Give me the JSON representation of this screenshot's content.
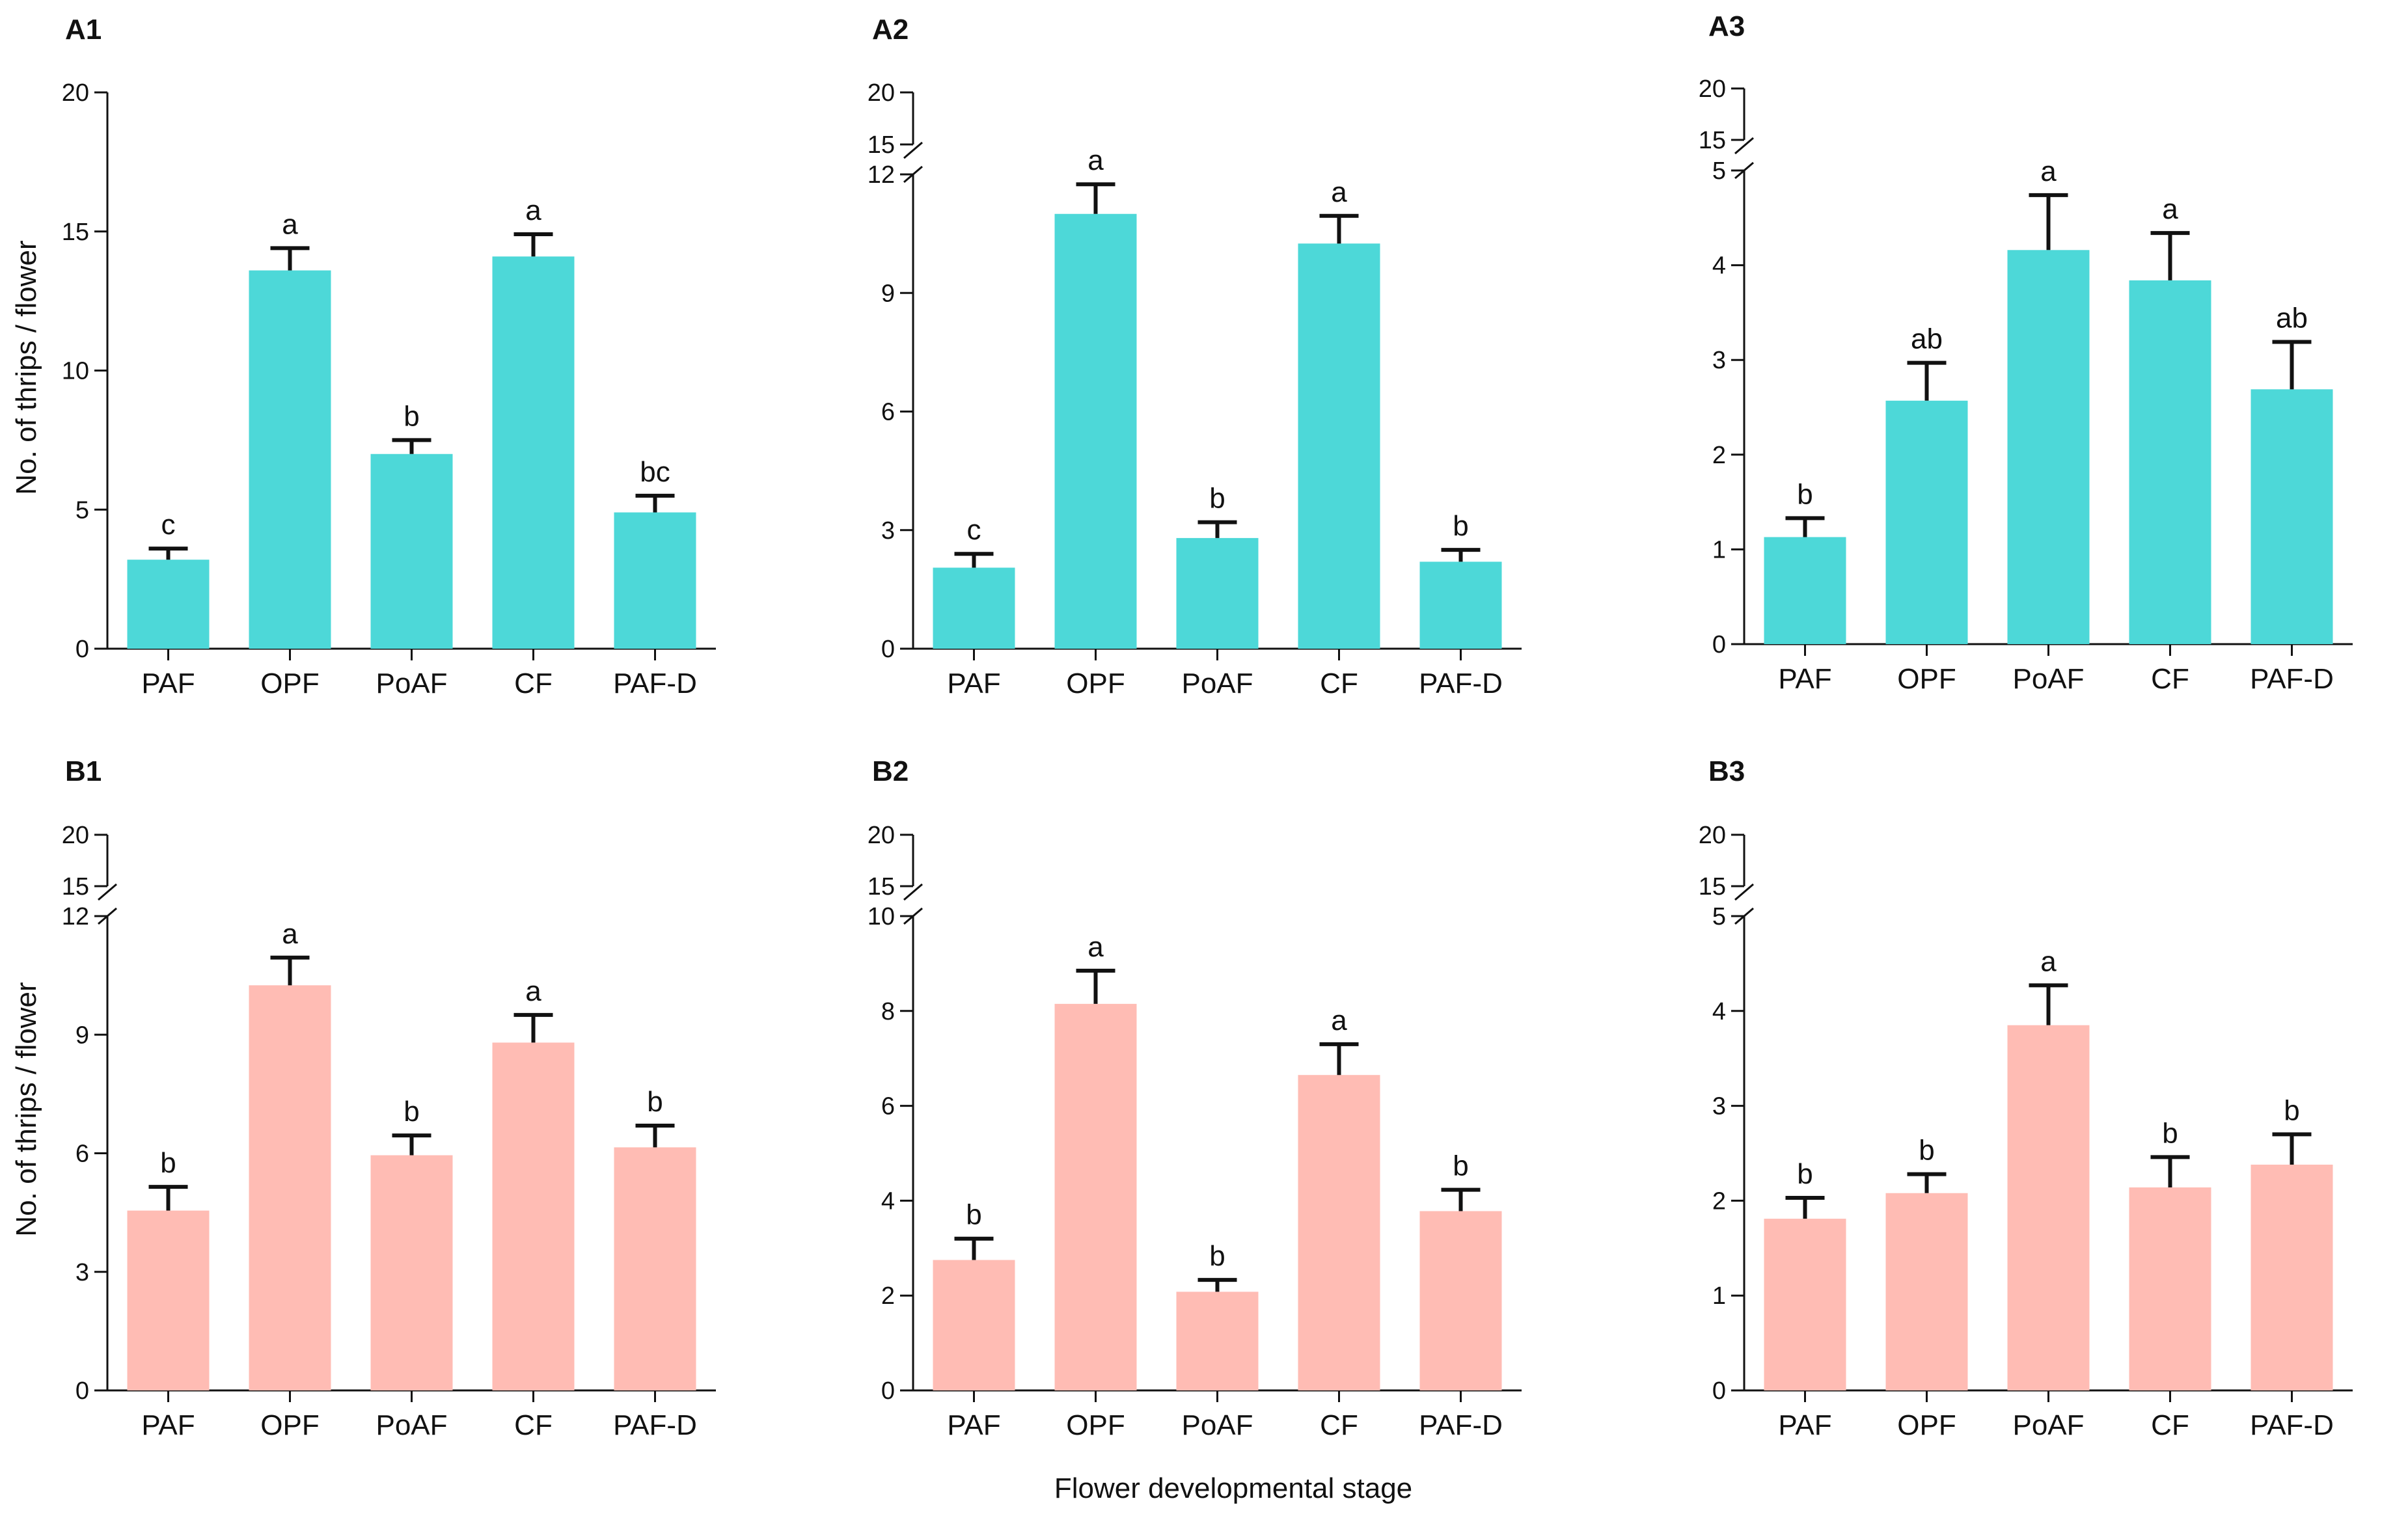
{
  "figure": {
    "xlabel": "Flower developmental stage",
    "ylabel": "No. of thrips / flower"
  },
  "chart_data": [
    {
      "id": "A1",
      "type": "bar",
      "title": "A1",
      "categories": [
        "PAF",
        "OPF",
        "PoAF",
        "CF",
        "PAF-D"
      ],
      "values": [
        3.2,
        13.6,
        7.0,
        14.1,
        4.9
      ],
      "errors": [
        0.4,
        0.8,
        0.5,
        0.8,
        0.6
      ],
      "letters": [
        "c",
        "a",
        "b",
        "a",
        "bc"
      ],
      "ylim": [
        0,
        20
      ],
      "broken": false,
      "yticks": [
        "0",
        "5",
        "10",
        "15",
        "20"
      ],
      "color": "#4dd8d8"
    },
    {
      "id": "A2",
      "type": "bar",
      "title": "A2",
      "categories": [
        "PAF",
        "OPF",
        "PoAF",
        "CF",
        "PAF-D"
      ],
      "values": [
        2.05,
        11.0,
        2.8,
        10.25,
        2.2
      ],
      "errors": [
        0.35,
        0.75,
        0.4,
        0.7,
        0.3
      ],
      "letters": [
        "c",
        "a",
        "b",
        "a",
        "b"
      ],
      "ylim": [
        0,
        12
      ],
      "broken": true,
      "upper_ticks": [
        "15",
        "20"
      ],
      "yticks": [
        "0",
        "3",
        "6",
        "9",
        "12"
      ],
      "color": "#4dd8d8"
    },
    {
      "id": "A3",
      "type": "bar",
      "title": "A3",
      "categories": [
        "PAF",
        "OPF",
        "PoAF",
        "CF",
        "PAF-D"
      ],
      "values": [
        1.13,
        2.57,
        4.16,
        3.84,
        2.69
      ],
      "errors": [
        0.2,
        0.4,
        0.58,
        0.5,
        0.5
      ],
      "letters": [
        "b",
        "ab",
        "a",
        "a",
        "ab"
      ],
      "ylim": [
        0,
        5
      ],
      "broken": true,
      "upper_ticks": [
        "15",
        "20"
      ],
      "yticks": [
        "0",
        "1",
        "2",
        "3",
        "4",
        "5"
      ],
      "color": "#4dd8d8"
    },
    {
      "id": "B1",
      "type": "bar",
      "title": "B1",
      "categories": [
        "PAF",
        "OPF",
        "PoAF",
        "CF",
        "PAF-D"
      ],
      "values": [
        4.55,
        10.25,
        5.95,
        8.8,
        6.15
      ],
      "errors": [
        0.6,
        0.7,
        0.5,
        0.7,
        0.55
      ],
      "letters": [
        "b",
        "a",
        "b",
        "a",
        "b"
      ],
      "ylim": [
        0,
        12
      ],
      "broken": true,
      "upper_ticks": [
        "15",
        "20"
      ],
      "yticks": [
        "0",
        "3",
        "6",
        "9",
        "12"
      ],
      "color": "#ffbcb4"
    },
    {
      "id": "B2",
      "type": "bar",
      "title": "B2",
      "categories": [
        "PAF",
        "OPF",
        "PoAF",
        "CF",
        "PAF-D"
      ],
      "values": [
        2.75,
        8.15,
        2.08,
        6.65,
        3.78
      ],
      "errors": [
        0.45,
        0.7,
        0.25,
        0.65,
        0.45
      ],
      "letters": [
        "b",
        "a",
        "b",
        "a",
        "b"
      ],
      "ylim": [
        0,
        10
      ],
      "broken": true,
      "upper_ticks": [
        "15",
        "20"
      ],
      "yticks": [
        "0",
        "2",
        "4",
        "6",
        "8",
        "10"
      ],
      "color": "#ffbcb4"
    },
    {
      "id": "B3",
      "type": "bar",
      "title": "B3",
      "categories": [
        "PAF",
        "OPF",
        "PoAF",
        "CF",
        "PAF-D"
      ],
      "values": [
        1.81,
        2.08,
        3.85,
        2.14,
        2.38
      ],
      "errors": [
        0.22,
        0.2,
        0.42,
        0.32,
        0.32
      ],
      "letters": [
        "b",
        "b",
        "a",
        "b",
        "b"
      ],
      "ylim": [
        0,
        5
      ],
      "broken": true,
      "upper_ticks": [
        "15",
        "20"
      ],
      "yticks": [
        "0",
        "1",
        "2",
        "3",
        "4",
        "5"
      ],
      "color": "#ffbcb4"
    }
  ]
}
